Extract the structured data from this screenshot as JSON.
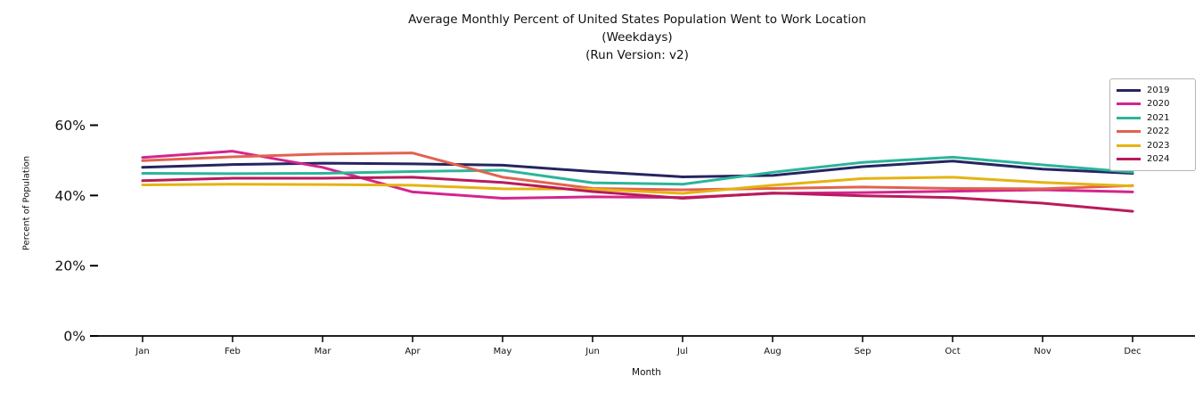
{
  "page": {
    "background": "#ffffff"
  },
  "chart_data": {
    "type": "line",
    "title": "Average Monthly Percent of United States Population Went to Work Location",
    "subtitle_lines": [
      "(Weekdays)",
      "(Run Version: v2)"
    ],
    "xlabel": "Month",
    "ylabel": "Percent of Population",
    "categories": [
      "Jan",
      "Feb",
      "Mar",
      "Apr",
      "May",
      "Jun",
      "Jul",
      "Aug",
      "Sep",
      "Oct",
      "Nov",
      "Dec"
    ],
    "y_tick_labels": [
      "0%",
      "20%",
      "40%",
      "60%"
    ],
    "y_tick_values": [
      0,
      20,
      40,
      60
    ],
    "ylim": [
      0,
      74
    ],
    "grid": false,
    "legend": {
      "position": "upper right",
      "entries": [
        "2019",
        "2020",
        "2021",
        "2022",
        "2023",
        "2024"
      ]
    },
    "axis_color": "#000000",
    "series": [
      {
        "name": "2019",
        "color": "#252561",
        "values": [
          48.0,
          48.8,
          49.2,
          49.0,
          48.6,
          46.8,
          45.3,
          45.7,
          48.2,
          49.8,
          47.5,
          46.3
        ]
      },
      {
        "name": "2020",
        "color": "#d4258f",
        "values": [
          50.8,
          52.6,
          48.0,
          41.0,
          39.2,
          39.6,
          39.4,
          40.6,
          40.8,
          41.2,
          41.6,
          41.0
        ]
      },
      {
        "name": "2021",
        "color": "#2bb59a",
        "values": [
          46.3,
          46.2,
          46.3,
          46.8,
          47.2,
          43.6,
          43.2,
          46.6,
          49.4,
          50.9,
          48.7,
          46.6
        ]
      },
      {
        "name": "2022",
        "color": "#e2624f",
        "values": [
          49.9,
          51.0,
          51.8,
          52.1,
          45.2,
          42.0,
          41.6,
          42.0,
          42.4,
          42.0,
          41.9,
          42.8
        ]
      },
      {
        "name": "2023",
        "color": "#e5b312",
        "values": [
          43.0,
          43.2,
          43.1,
          42.9,
          41.9,
          41.8,
          40.6,
          42.9,
          44.8,
          45.2,
          43.7,
          42.7
        ]
      },
      {
        "name": "2024",
        "color": "#b81b5b",
        "values": [
          44.2,
          44.9,
          44.9,
          45.2,
          43.7,
          41.1,
          39.2,
          40.7,
          39.9,
          39.4,
          37.8,
          35.5
        ]
      }
    ]
  }
}
